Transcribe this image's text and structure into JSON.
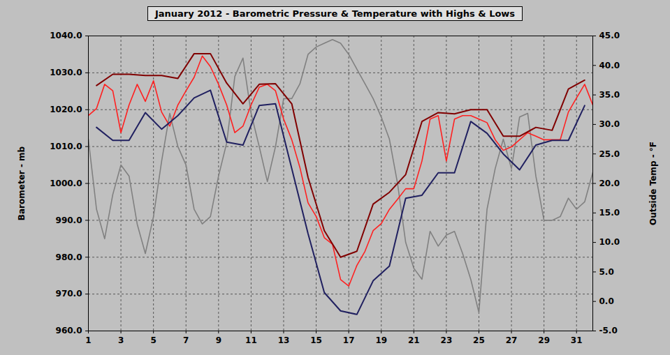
{
  "chart_data": {
    "type": "line",
    "title": "January 2012 - Barometric Pressure & Temperature with Highs & Lows",
    "y_label": "Barometer - mb",
    "y2_label": "Outside Temp - °F",
    "x": [
      1,
      1.5,
      2,
      2.5,
      3,
      3.5,
      4,
      4.5,
      5,
      5.5,
      6,
      6.5,
      7,
      7.5,
      8,
      8.5,
      9,
      9.5,
      10,
      10.5,
      11,
      11.5,
      12,
      12.5,
      13,
      13.5,
      14,
      14.5,
      15,
      15.5,
      16,
      16.5,
      17,
      17.5,
      18,
      18.5,
      19,
      19.5,
      20,
      20.5,
      21,
      21.5,
      22,
      22.5,
      23,
      23.5,
      24,
      24.5,
      25,
      25.5,
      26,
      26.5,
      27,
      27.5,
      28,
      28.5,
      29,
      29.5,
      30,
      30.5,
      31,
      31.5,
      32
    ],
    "xlim": [
      1,
      32
    ],
    "xticks": [
      1,
      3,
      5,
      7,
      9,
      11,
      13,
      15,
      17,
      19,
      21,
      23,
      25,
      27,
      29,
      31
    ],
    "ylim": [
      960,
      1040
    ],
    "yticks": [
      {
        "value": 960,
        "label": "960.0"
      },
      {
        "value": 970,
        "label": "970.0"
      },
      {
        "value": 980,
        "label": "980.0"
      },
      {
        "value": 990,
        "label": "990.0"
      },
      {
        "value": 1000,
        "label": "1000.0"
      },
      {
        "value": 1010,
        "label": "1010.0"
      },
      {
        "value": 1020,
        "label": "1020.0"
      },
      {
        "value": 1030,
        "label": "1030.0"
      },
      {
        "value": 1040,
        "label": "1040.0"
      }
    ],
    "y2lim": [
      -5,
      45
    ],
    "y2ticks": [
      {
        "value": -5,
        "label": "-5.0"
      },
      {
        "value": 0,
        "label": "0.0"
      },
      {
        "value": 5,
        "label": "5.0"
      },
      {
        "value": 10,
        "label": "10.0"
      },
      {
        "value": 15,
        "label": "15.0"
      },
      {
        "value": 20,
        "label": "20.0"
      },
      {
        "value": 25,
        "label": "25.0"
      },
      {
        "value": 30,
        "label": "30.0"
      },
      {
        "value": 35,
        "label": "35.0"
      },
      {
        "value": 40,
        "label": "40.0"
      },
      {
        "value": 45,
        "label": "45.0"
      }
    ],
    "grid": true,
    "series": [
      {
        "color": "#808080",
        "axis": "y",
        "values": [
          1012,
          993,
          985,
          997,
          1005,
          1002,
          989,
          981,
          991,
          1006,
          1019,
          1010,
          1005,
          993,
          989,
          991,
          1002,
          1011,
          1029,
          1034,
          1019,
          1010,
          1000.5,
          1010,
          1023,
          1023,
          1027,
          1035,
          1037,
          1038,
          1039,
          1038,
          1035,
          1031,
          1027,
          1023,
          1018,
          1012,
          1000,
          984,
          977,
          974,
          987,
          983,
          986,
          987,
          981,
          974,
          965,
          993,
          1004,
          1012,
          1004,
          1018,
          1019,
          1002,
          990,
          990,
          991,
          996,
          993,
          995,
          1003
        ]
      },
      {
        "color": "#ff2020",
        "axis": "y2",
        "values": [
          31.5,
          32.7,
          36.8,
          35.7,
          28.6,
          33.3,
          36.8,
          33.9,
          37.4,
          32.1,
          29.7,
          33.3,
          35.7,
          38,
          41.6,
          39.8,
          36.8,
          33.3,
          28.6,
          29.7,
          33.3,
          36.3,
          36.8,
          35.7,
          30.9,
          27.4,
          22.7,
          16.7,
          14.4,
          10.8,
          9.7,
          3.7,
          2.6,
          6.1,
          8.5,
          12,
          13.2,
          15.6,
          17.3,
          19.1,
          19.1,
          23.8,
          30.9,
          31.5,
          23.8,
          30.9,
          31.5,
          31.5,
          30.9,
          30.3,
          27.4,
          25.6,
          26.2,
          27.4,
          28.6,
          28,
          27.4,
          27.4,
          27.4,
          32.1,
          34.5,
          36.8,
          33.3
        ]
      },
      {
        "color": "#800000",
        "axis": "y2",
        "x": [
          1.5,
          2.5,
          3.5,
          4.5,
          5.5,
          6.5,
          7.5,
          8.5,
          9.5,
          10.5,
          11.5,
          12.5,
          13.5,
          14.5,
          15.5,
          16.5,
          17.5,
          18.5,
          19.5,
          20.5,
          21.5,
          22.5,
          23.5,
          24.5,
          25.5,
          26.5,
          27.5,
          28.5,
          29.5,
          30.5,
          31.5
        ],
        "values": [
          36.6,
          38.5,
          38.5,
          38.3,
          38.3,
          37.8,
          42,
          42,
          37,
          33.5,
          36.8,
          36.9,
          33.5,
          21,
          12,
          7.5,
          8.5,
          16.5,
          18.5,
          21.5,
          30.5,
          32,
          31.8,
          32.5,
          32.5,
          28,
          28,
          29.5,
          29,
          36,
          37.5
        ]
      },
      {
        "color": "#202060",
        "axis": "y2",
        "x": [
          1.5,
          2.5,
          3.5,
          4.5,
          5.5,
          6.5,
          7.5,
          8.5,
          9.5,
          10.5,
          11.5,
          12.5,
          13.5,
          14.5,
          15.5,
          16.5,
          17.5,
          18.5,
          19.5,
          20.5,
          21.5,
          22.5,
          23.5,
          24.5,
          25.5,
          26.5,
          27.5,
          28.5,
          29.5,
          30.5,
          31.5
        ],
        "values": [
          29.5,
          27.3,
          27.3,
          32,
          29.2,
          31.5,
          34.5,
          35.8,
          27,
          26.5,
          33.2,
          33.5,
          22.5,
          11.5,
          1.5,
          -1.6,
          -2.2,
          3.5,
          6,
          17.5,
          18,
          21.8,
          21.8,
          30.5,
          28.5,
          25,
          22.3,
          26.5,
          27.3,
          27.3,
          33.2
        ]
      }
    ]
  }
}
